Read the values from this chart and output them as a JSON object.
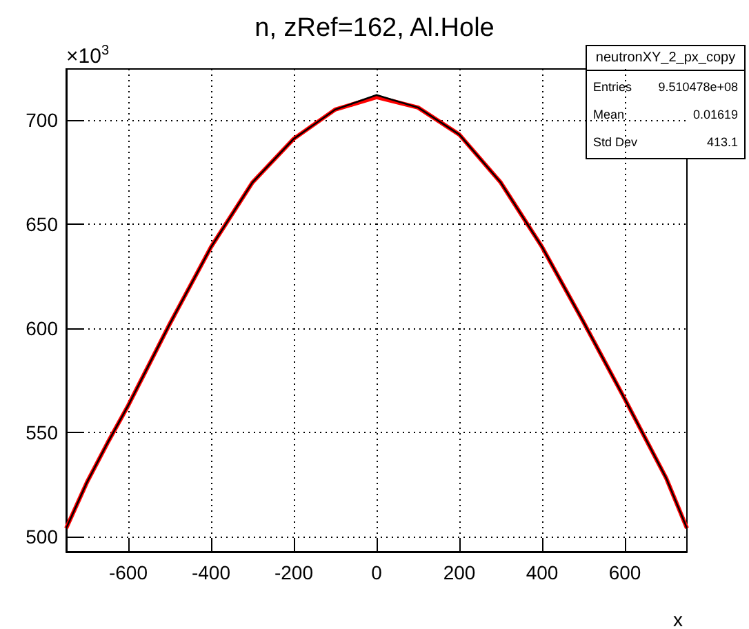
{
  "chart_data": {
    "type": "line",
    "title": "n, zRef=162, Al.Hole",
    "xlabel": "x",
    "annotations": [
      "×10$^{3}$",
      "neutronXY_2_px_copy",
      "Entries 9.510478e+08",
      "Mean 0.01619",
      "Std Dev 413.1"
    ],
    "x": [
      -750,
      -700,
      -650,
      -600,
      -500,
      -400,
      -300,
      -200,
      -100,
      0,
      100,
      200,
      300,
      400,
      500,
      600,
      650,
      700,
      750
    ],
    "series": [
      {
        "type": "line",
        "color": "#000000",
        "values": [
          504,
          526,
          545,
          563,
          602,
          639,
          670,
          691,
          705,
          712,
          706,
          693,
          670,
          639,
          603,
          566,
          547,
          528,
          504
        ]
      },
      {
        "color": "#ff0000",
        "values": [
          504,
          526,
          545,
          563,
          602,
          639,
          670,
          691,
          705,
          711,
          706,
          693,
          670,
          639,
          603,
          566,
          547,
          528,
          504
        ]
      }
    ],
    "xlim": [
      -750,
      750
    ],
    "ylim": [
      492.7,
      724.5
    ],
    "xticks": [
      -600,
      -400,
      -200,
      0,
      200,
      400,
      600
    ],
    "yticks": [
      500,
      550,
      600,
      650,
      700
    ],
    "grid": true,
    "marker": "none"
  }
}
